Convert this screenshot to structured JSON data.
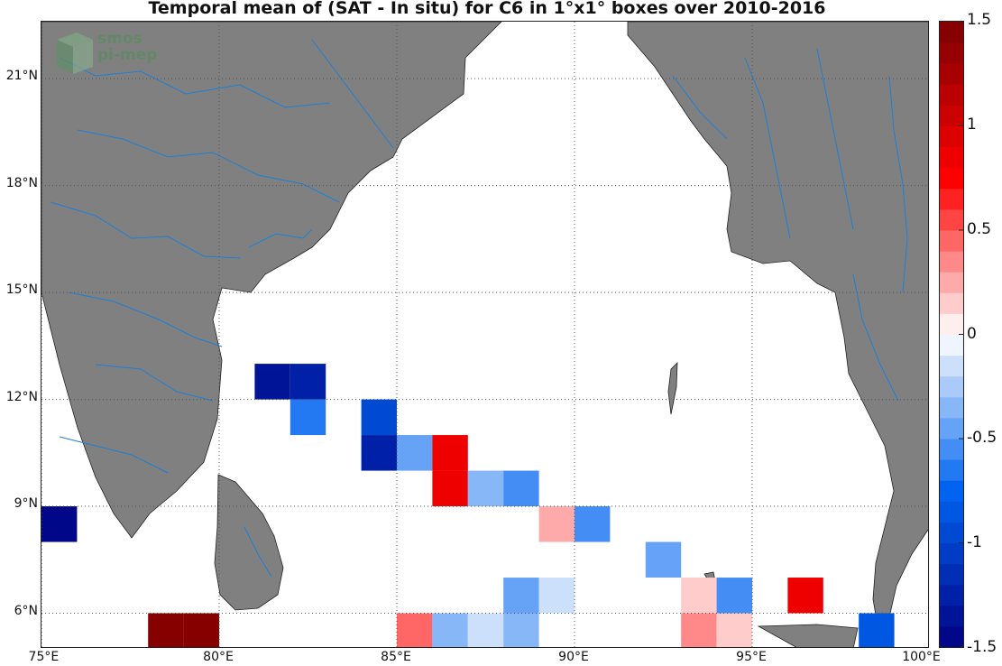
{
  "title": "Temporal mean of (SAT - In situ) for C6 in 1°x1° boxes over 2010-2016",
  "logo": {
    "line1": "smos",
    "line2": "pi-mep"
  },
  "x_ticks": [
    {
      "value": 75,
      "label": "75°E"
    },
    {
      "value": 80,
      "label": "80°E"
    },
    {
      "value": 85,
      "label": "85°E"
    },
    {
      "value": 90,
      "label": "90°E"
    },
    {
      "value": 95,
      "label": "95°E"
    },
    {
      "value": 100,
      "label": "100°E"
    }
  ],
  "y_ticks": [
    {
      "value": 6,
      "label": "6°N"
    },
    {
      "value": 9,
      "label": "9°N"
    },
    {
      "value": 12,
      "label": "12°N"
    },
    {
      "value": 15,
      "label": "15°N"
    },
    {
      "value": 18,
      "label": "18°N"
    },
    {
      "value": 21,
      "label": "21°N"
    }
  ],
  "colorbar": {
    "min": -1.5,
    "max": 1.5,
    "ticks": [
      {
        "value": 1.5,
        "label": "1.5"
      },
      {
        "value": 1,
        "label": "1"
      },
      {
        "value": 0.5,
        "label": "0.5"
      },
      {
        "value": 0,
        "label": "0"
      },
      {
        "value": -0.5,
        "label": "-0.5"
      },
      {
        "value": -1,
        "label": "-1"
      },
      {
        "value": -1.5,
        "label": "-1.5"
      }
    ]
  },
  "colors": {
    "land": "#808080",
    "river": "#1e7fd6",
    "grid": "#555555",
    "ocean": "#ffffff"
  },
  "chart_data": {
    "type": "heatmap",
    "x_range": [
      75,
      100
    ],
    "y_range": [
      5,
      22.6
    ],
    "cell_size_deg": 1,
    "cells": [
      {
        "lon": 75,
        "lat": 8,
        "value": -1.45
      },
      {
        "lon": 78,
        "lat": 5,
        "value": 1.5
      },
      {
        "lon": 79,
        "lat": 5,
        "value": 1.5
      },
      {
        "lon": 81,
        "lat": 12,
        "value": -1.4
      },
      {
        "lon": 82,
        "lat": 12,
        "value": -1.25
      },
      {
        "lon": 82,
        "lat": 11,
        "value": -0.7
      },
      {
        "lon": 84,
        "lat": 11,
        "value": -0.9
      },
      {
        "lon": 84,
        "lat": 10,
        "value": -1.25
      },
      {
        "lon": 85,
        "lat": 10,
        "value": -0.45
      },
      {
        "lon": 86,
        "lat": 10,
        "value": 0.85
      },
      {
        "lon": 86,
        "lat": 9,
        "value": 0.85
      },
      {
        "lon": 87,
        "lat": 9,
        "value": -0.35
      },
      {
        "lon": 88,
        "lat": 9,
        "value": -0.6
      },
      {
        "lon": 89,
        "lat": 8,
        "value": 0.25
      },
      {
        "lon": 90,
        "lat": 8,
        "value": -0.6
      },
      {
        "lon": 92,
        "lat": 7,
        "value": -0.5
      },
      {
        "lon": 88,
        "lat": 6,
        "value": -0.45
      },
      {
        "lon": 89,
        "lat": 6,
        "value": -0.1
      },
      {
        "lon": 93,
        "lat": 6,
        "value": 0.15
      },
      {
        "lon": 94,
        "lat": 6,
        "value": -0.6
      },
      {
        "lon": 96,
        "lat": 6,
        "value": 0.85
      },
      {
        "lon": 85,
        "lat": 5,
        "value": 0.4
      },
      {
        "lon": 86,
        "lat": 5,
        "value": -0.35
      },
      {
        "lon": 87,
        "lat": 5,
        "value": -0.15
      },
      {
        "lon": 88,
        "lat": 5,
        "value": -0.35
      },
      {
        "lon": 93,
        "lat": 5,
        "value": 0.3
      },
      {
        "lon": 94,
        "lat": 5,
        "value": 0.15
      },
      {
        "lon": 98,
        "lat": 5,
        "value": -0.85
      }
    ]
  }
}
